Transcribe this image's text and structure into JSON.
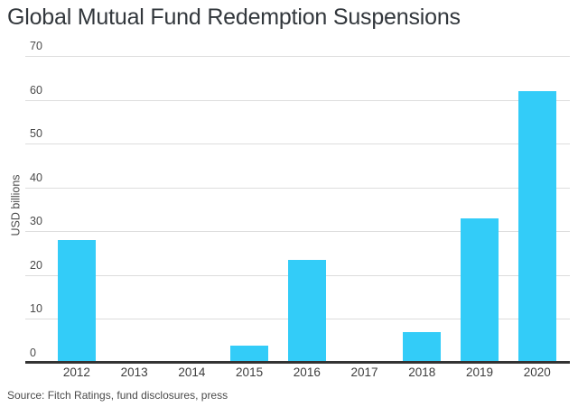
{
  "title": "Global Mutual Fund Redemption Suspensions",
  "source": "Source: Fitch Ratings, fund disclosures, press",
  "colors": {
    "bar": "#33ccf8",
    "axis": "#333333",
    "gridline": "#dddddd",
    "title_text": "#32373c",
    "tick_text": "#4a4a4a",
    "background": "#ffffff"
  },
  "chart_data": {
    "type": "bar",
    "title": "Global Mutual Fund Redemption Suspensions",
    "categories": [
      "2012",
      "2013",
      "2014",
      "2015",
      "2016",
      "2017",
      "2018",
      "2019",
      "2020"
    ],
    "values": [
      28,
      0,
      0,
      4,
      23.5,
      0,
      7,
      33,
      62
    ],
    "xlabel": "",
    "ylabel": "USD billions",
    "ylim": [
      0,
      70
    ],
    "yticks": [
      0,
      10,
      20,
      30,
      40,
      50,
      60,
      70
    ],
    "bar_color": "#33ccf8",
    "grid": "horizontal",
    "legend": "none",
    "source": "Source: Fitch Ratings, fund disclosures, press"
  }
}
